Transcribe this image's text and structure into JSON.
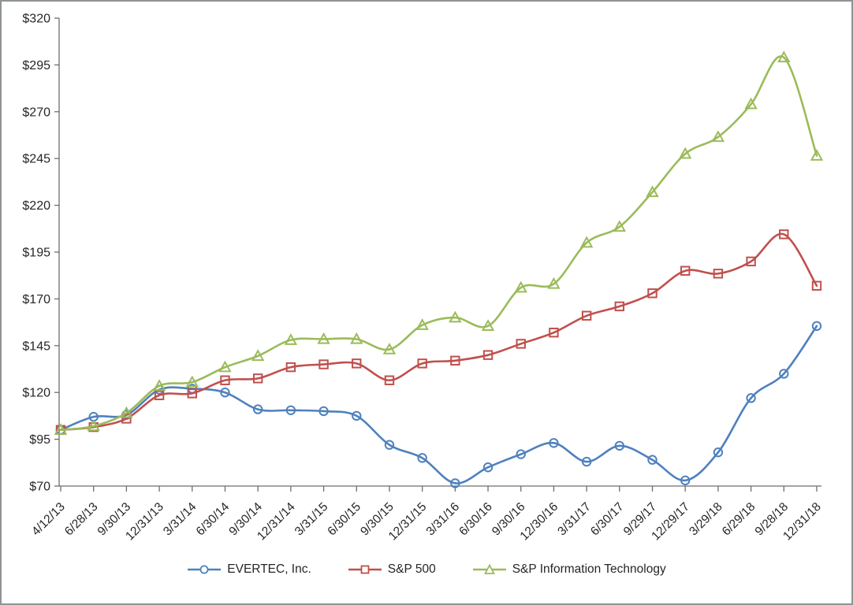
{
  "chart_data": {
    "type": "line",
    "title": "",
    "smoothed": true,
    "grid": false,
    "legend_position": "bottom",
    "categories": [
      "4/12/13",
      "6/28/13",
      "9/30/13",
      "12/31/13",
      "3/31/14",
      "6/30/14",
      "9/30/14",
      "12/31/14",
      "3/31/15",
      "6/30/15",
      "9/30/15",
      "12/31/15",
      "3/31/16",
      "6/30/16",
      "9/30/16",
      "12/30/16",
      "3/31/17",
      "6/30/17",
      "9/29/17",
      "12/29/17",
      "3/29/18",
      "6/29/18",
      "9/28/18",
      "12/31/18"
    ],
    "series": [
      {
        "name": "EVERTEC, Inc.",
        "marker": "circle",
        "color": "#4F81BD",
        "values": [
          100,
          107,
          108,
          121.5,
          122,
          120,
          111,
          110.5,
          110,
          107.5,
          92,
          85,
          71.5,
          80,
          87,
          93,
          83,
          91.5,
          84,
          73,
          88,
          117,
          130,
          155.5
        ]
      },
      {
        "name": "S&P 500",
        "marker": "square",
        "color": "#C0504D",
        "values": [
          100,
          101.5,
          106,
          118.5,
          119.5,
          126.5,
          127.5,
          133.5,
          135,
          135.5,
          126.5,
          135.5,
          137,
          140,
          146,
          152,
          161,
          166,
          173,
          185,
          183.5,
          190,
          204.5,
          177
        ]
      },
      {
        "name": "S&P Information Technology",
        "marker": "triangle",
        "color": "#9BBB59",
        "values": [
          100,
          102,
          109,
          123.5,
          125.5,
          133.5,
          139.5,
          148,
          148.5,
          148.5,
          143,
          156,
          160,
          155.5,
          176,
          178,
          200,
          208.5,
          227,
          247.5,
          256.5,
          274,
          299,
          246.5
        ]
      }
    ],
    "y_axis": {
      "min": 70,
      "max": 320,
      "step": 25,
      "tick_prefix": "$",
      "tick_labels": [
        "$320",
        "$295",
        "$270",
        "$245",
        "$220",
        "$195",
        "$170",
        "$145",
        "$120",
        "$95",
        "$70"
      ]
    },
    "x_axis": {
      "label_rotation_deg": -45
    }
  }
}
